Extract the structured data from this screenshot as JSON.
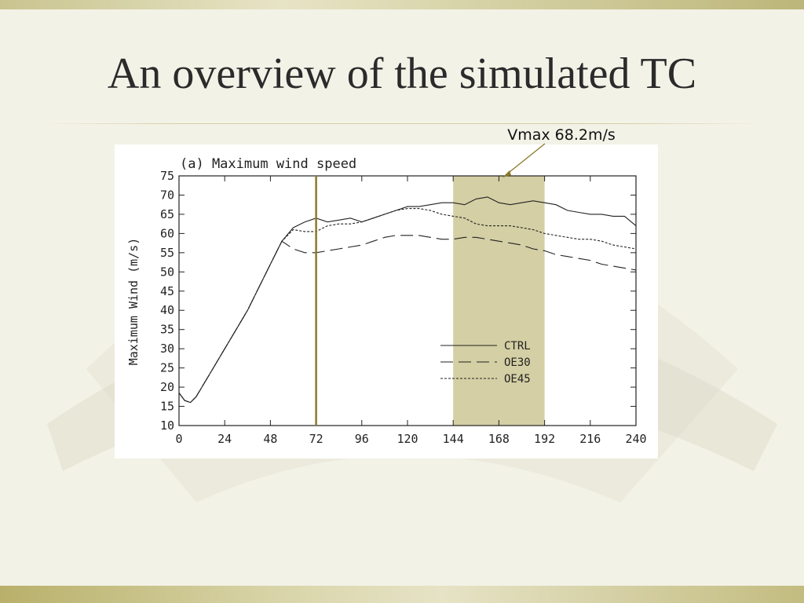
{
  "slide": {
    "title": "An overview of the simulated TC",
    "callout": "Vmax 68.2m/s"
  },
  "colors": {
    "band": "#c9c48f",
    "highlight": "#d4cfa4",
    "marker": "#8b7a2a",
    "line": "#222222"
  },
  "chart_data": {
    "type": "line",
    "title": "(a) Maximum wind speed",
    "xlabel": "",
    "ylabel": "Maximum Wind (m/s)",
    "xlim": [
      0,
      240
    ],
    "ylim": [
      10,
      75
    ],
    "xticks": [
      0,
      24,
      48,
      72,
      96,
      120,
      144,
      168,
      192,
      216,
      240
    ],
    "yticks": [
      10,
      15,
      20,
      25,
      30,
      35,
      40,
      45,
      50,
      55,
      60,
      65,
      70,
      75
    ],
    "grid": false,
    "legend_position": "lower-right",
    "vertical_marker_x": 72,
    "highlight_range": [
      144,
      192
    ],
    "series": [
      {
        "name": "CTRL",
        "dash": "solid",
        "x": [
          0,
          3,
          6,
          9,
          12,
          18,
          24,
          30,
          36,
          42,
          48,
          54,
          60,
          66,
          72,
          78,
          84,
          90,
          96,
          102,
          108,
          114,
          120,
          126,
          132,
          138,
          144,
          150,
          156,
          162,
          168,
          174,
          180,
          186,
          192,
          198,
          204,
          210,
          216,
          222,
          228,
          234,
          240
        ],
        "y": [
          18.5,
          16.5,
          16,
          17.5,
          20,
          25,
          30,
          35,
          40,
          46,
          52,
          58,
          61.5,
          63,
          64,
          63,
          63.5,
          64,
          63,
          64,
          65,
          66,
          67,
          67,
          67.5,
          68,
          68,
          67.5,
          69,
          69.5,
          68,
          67.5,
          68,
          68.5,
          68,
          67.5,
          66,
          65.5,
          65,
          65,
          64.5,
          64.5,
          62
        ]
      },
      {
        "name": "OE30",
        "dash": "long-dash",
        "x": [
          0,
          3,
          6,
          9,
          12,
          18,
          24,
          30,
          36,
          42,
          48,
          54,
          60,
          66,
          72,
          78,
          84,
          90,
          96,
          102,
          108,
          114,
          120,
          126,
          132,
          138,
          144,
          150,
          156,
          162,
          168,
          174,
          180,
          186,
          192,
          198,
          204,
          210,
          216,
          222,
          228,
          234,
          240
        ],
        "y": [
          18.5,
          16.5,
          16,
          17.5,
          20,
          25,
          30,
          35,
          40,
          46,
          52,
          58,
          56,
          55,
          55,
          55.5,
          56,
          56.5,
          57,
          58,
          59,
          59.5,
          59.5,
          59.5,
          59,
          58.5,
          58.5,
          59,
          59,
          58.5,
          58,
          57.5,
          57,
          56,
          55.5,
          54.5,
          54,
          53.5,
          53,
          52,
          51.5,
          51,
          50.5
        ]
      },
      {
        "name": "OE45",
        "dash": "short-dash",
        "x": [
          0,
          3,
          6,
          9,
          12,
          18,
          24,
          30,
          36,
          42,
          48,
          54,
          60,
          66,
          72,
          78,
          84,
          90,
          96,
          102,
          108,
          114,
          120,
          126,
          132,
          138,
          144,
          150,
          156,
          162,
          168,
          174,
          180,
          186,
          192,
          198,
          204,
          210,
          216,
          222,
          228,
          234,
          240
        ],
        "y": [
          18.5,
          16.5,
          16,
          17.5,
          20,
          25,
          30,
          35,
          40,
          46,
          52,
          58,
          61,
          60.5,
          60.5,
          62,
          62.5,
          62.5,
          63,
          64,
          65,
          66,
          66.5,
          66.5,
          66,
          65,
          64.5,
          64,
          62.5,
          62,
          62,
          62,
          61.5,
          61,
          60,
          59.5,
          59,
          58.5,
          58.5,
          58,
          57,
          56.5,
          56
        ]
      }
    ]
  }
}
